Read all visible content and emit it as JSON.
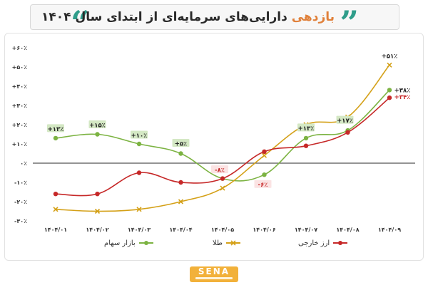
{
  "header": {
    "title_accent": "بازدهی",
    "title_rest": "دارایی‌های سرمایه‌ای از ابتدای سال ۱۴۰۴",
    "quote_left": "“",
    "quote_right": "”"
  },
  "brand": {
    "name": "SENA"
  },
  "colors": {
    "stocks": "#7cb342",
    "gold": "#d4a017",
    "currency": "#c62828",
    "label_bg": "#d4e8c4",
    "zero_line": "#555555"
  },
  "chart_data": {
    "type": "line",
    "title": "بازدهی دارایی‌های سرمایه‌ای از ابتدای سال ۱۴۰۴",
    "categories": [
      "۱۴۰۴/۰۱",
      "۱۴۰۴/۰۲",
      "۱۴۰۴/۰۳",
      "۱۴۰۴/۰۴",
      "۱۴۰۴/۰۵",
      "۱۴۰۴/۰۶",
      "۱۴۰۴/۰۷",
      "۱۴۰۴/۰۸",
      "۱۴۰۴/۰۹"
    ],
    "y_ticks": [
      -30,
      -20,
      -10,
      0,
      10,
      20,
      30,
      40,
      50,
      60
    ],
    "y_tick_labels": [
      "-۳۰٪",
      "-۲۰٪",
      "-۱۰٪",
      "۰٪",
      "+۱۰٪",
      "+۲۰٪",
      "+۳۰٪",
      "+۴۰٪",
      "+۵۰٪",
      "+۶۰٪"
    ],
    "ylim": [
      -30,
      60
    ],
    "legend_position": "bottom",
    "series": [
      {
        "name": "بازار سهام",
        "key": "stocks",
        "values": [
          13,
          15,
          10,
          5,
          -8,
          -6,
          13,
          17,
          38
        ],
        "labels": [
          "+۱۳٪",
          "+۱۵٪",
          "+۱۰٪",
          "+۵٪",
          "",
          "-۶٪",
          "+۱۳٪",
          "+۱۷٪",
          "+۳۸٪"
        ],
        "marker": "circle"
      },
      {
        "name": "طلا",
        "key": "gold",
        "values": [
          -24,
          -25,
          -24,
          -20,
          -13,
          4,
          20,
          24,
          51
        ],
        "labels": [
          "",
          "",
          "",
          "",
          "",
          "",
          "",
          "",
          "+۵۱٪"
        ],
        "marker": "x"
      },
      {
        "name": "ارز خارجی",
        "key": "currency",
        "values": [
          -16,
          -16,
          -5,
          -10,
          -8,
          6,
          9,
          16,
          34
        ],
        "labels": [
          "",
          "",
          "",
          "",
          "-۸٪",
          "",
          "",
          "",
          "+۳۴٪"
        ],
        "marker": "circle"
      }
    ]
  }
}
